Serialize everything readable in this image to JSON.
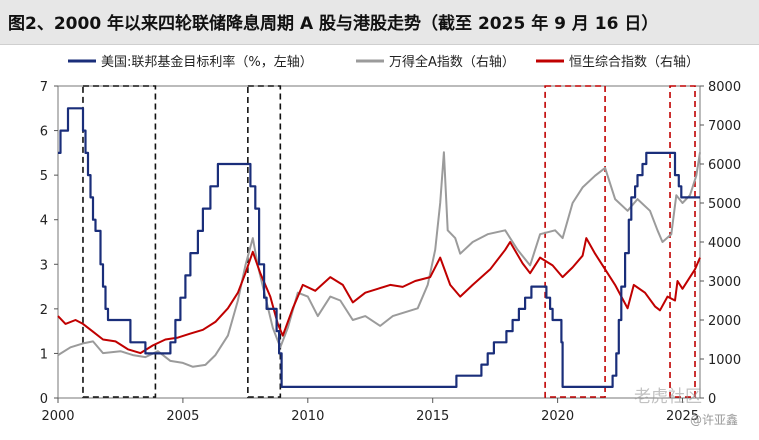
{
  "chart_data": {
    "type": "line",
    "title": "图2、2000 年以来四轮联储降息周期 A 股与港股走势（截至 2025 年 9 月 16 日）",
    "x_ticks": [
      "2000",
      "2005",
      "2010",
      "2015",
      "2020",
      "2025"
    ],
    "xlim": [
      2000,
      2025.7
    ],
    "y_left": {
      "ylim": [
        0,
        7
      ],
      "ticks": [
        "0",
        "1",
        "2",
        "3",
        "4",
        "5",
        "6",
        "7"
      ]
    },
    "y_right": {
      "ylim": [
        0,
        8000
      ],
      "ticks": [
        "0",
        "1000",
        "2000",
        "3000",
        "4000",
        "5000",
        "6000",
        "7000",
        "8000"
      ]
    },
    "series": [
      {
        "name": "美国:联邦基金目标利率（%，左轴）",
        "axis": "left",
        "color": "#1a2e7a",
        "step": true,
        "points": [
          [
            2000.0,
            5.5
          ],
          [
            2000.1,
            6.0
          ],
          [
            2000.4,
            6.5
          ],
          [
            2001.0,
            6.0
          ],
          [
            2001.1,
            5.5
          ],
          [
            2001.2,
            5.0
          ],
          [
            2001.3,
            4.5
          ],
          [
            2001.4,
            4.0
          ],
          [
            2001.5,
            3.75
          ],
          [
            2001.7,
            3.0
          ],
          [
            2001.8,
            2.5
          ],
          [
            2001.9,
            2.0
          ],
          [
            2002.0,
            1.75
          ],
          [
            2002.9,
            1.25
          ],
          [
            2003.5,
            1.0
          ],
          [
            2004.5,
            1.25
          ],
          [
            2004.7,
            1.75
          ],
          [
            2004.9,
            2.25
          ],
          [
            2005.1,
            2.75
          ],
          [
            2005.3,
            3.25
          ],
          [
            2005.6,
            3.75
          ],
          [
            2005.8,
            4.25
          ],
          [
            2006.1,
            4.75
          ],
          [
            2006.4,
            5.25
          ],
          [
            2007.7,
            4.75
          ],
          [
            2007.9,
            4.25
          ],
          [
            2008.05,
            3.0
          ],
          [
            2008.25,
            2.25
          ],
          [
            2008.35,
            2.0
          ],
          [
            2008.75,
            1.5
          ],
          [
            2008.85,
            1.0
          ],
          [
            2008.95,
            0.25
          ],
          [
            2015.95,
            0.5
          ],
          [
            2016.95,
            0.75
          ],
          [
            2017.2,
            1.0
          ],
          [
            2017.45,
            1.25
          ],
          [
            2017.95,
            1.5
          ],
          [
            2018.2,
            1.75
          ],
          [
            2018.45,
            2.0
          ],
          [
            2018.7,
            2.25
          ],
          [
            2018.95,
            2.5
          ],
          [
            2019.55,
            2.25
          ],
          [
            2019.7,
            2.0
          ],
          [
            2019.8,
            1.75
          ],
          [
            2020.15,
            1.25
          ],
          [
            2020.2,
            0.25
          ],
          [
            2022.2,
            0.5
          ],
          [
            2022.35,
            1.0
          ],
          [
            2022.45,
            1.75
          ],
          [
            2022.55,
            2.5
          ],
          [
            2022.7,
            3.25
          ],
          [
            2022.85,
            4.0
          ],
          [
            2022.95,
            4.5
          ],
          [
            2023.1,
            4.75
          ],
          [
            2023.2,
            5.0
          ],
          [
            2023.4,
            5.25
          ],
          [
            2023.55,
            5.5
          ],
          [
            2024.7,
            5.0
          ],
          [
            2024.85,
            4.75
          ],
          [
            2024.95,
            4.5
          ],
          [
            2025.7,
            4.5
          ]
        ]
      },
      {
        "name": "万得全A指数（右轴）",
        "axis": "right",
        "color": "#9b9b9b",
        "points": [
          [
            2000.0,
            1100
          ],
          [
            2000.5,
            1300
          ],
          [
            2001.0,
            1400
          ],
          [
            2001.4,
            1450
          ],
          [
            2001.8,
            1150
          ],
          [
            2002.5,
            1200
          ],
          [
            2003.0,
            1100
          ],
          [
            2003.5,
            1050
          ],
          [
            2004.0,
            1200
          ],
          [
            2004.5,
            950
          ],
          [
            2005.0,
            900
          ],
          [
            2005.4,
            800
          ],
          [
            2005.9,
            850
          ],
          [
            2006.3,
            1100
          ],
          [
            2006.8,
            1600
          ],
          [
            2007.2,
            2500
          ],
          [
            2007.5,
            3400
          ],
          [
            2007.8,
            4100
          ],
          [
            2008.0,
            3400
          ],
          [
            2008.3,
            2600
          ],
          [
            2008.6,
            1800
          ],
          [
            2008.9,
            1300
          ],
          [
            2009.2,
            1800
          ],
          [
            2009.6,
            2700
          ],
          [
            2010.0,
            2600
          ],
          [
            2010.4,
            2100
          ],
          [
            2010.9,
            2600
          ],
          [
            2011.3,
            2500
          ],
          [
            2011.8,
            2000
          ],
          [
            2012.3,
            2100
          ],
          [
            2012.9,
            1850
          ],
          [
            2013.4,
            2100
          ],
          [
            2013.9,
            2200
          ],
          [
            2014.4,
            2300
          ],
          [
            2014.8,
            2900
          ],
          [
            2015.1,
            3800
          ],
          [
            2015.3,
            5000
          ],
          [
            2015.45,
            6300
          ],
          [
            2015.6,
            4300
          ],
          [
            2015.9,
            4100
          ],
          [
            2016.1,
            3700
          ],
          [
            2016.6,
            4000
          ],
          [
            2017.2,
            4200
          ],
          [
            2017.9,
            4300
          ],
          [
            2018.4,
            3800
          ],
          [
            2018.9,
            3400
          ],
          [
            2019.3,
            4200
          ],
          [
            2019.9,
            4300
          ],
          [
            2020.2,
            4100
          ],
          [
            2020.6,
            5000
          ],
          [
            2021.0,
            5400
          ],
          [
            2021.5,
            5700
          ],
          [
            2021.9,
            5900
          ],
          [
            2022.3,
            5100
          ],
          [
            2022.8,
            4800
          ],
          [
            2023.2,
            5100
          ],
          [
            2023.7,
            4800
          ],
          [
            2024.0,
            4300
          ],
          [
            2024.2,
            4000
          ],
          [
            2024.55,
            4200
          ],
          [
            2024.75,
            5200
          ],
          [
            2025.0,
            5000
          ],
          [
            2025.3,
            5200
          ],
          [
            2025.55,
            5700
          ],
          [
            2025.7,
            6300
          ]
        ]
      },
      {
        "name": "恒生综合指数（右轴）",
        "axis": "right",
        "color": "#c00000",
        "points": [
          [
            2000.0,
            2100
          ],
          [
            2000.3,
            1900
          ],
          [
            2000.7,
            2000
          ],
          [
            2001.0,
            1900
          ],
          [
            2001.4,
            1700
          ],
          [
            2001.8,
            1500
          ],
          [
            2002.3,
            1450
          ],
          [
            2002.8,
            1250
          ],
          [
            2003.3,
            1150
          ],
          [
            2003.8,
            1350
          ],
          [
            2004.3,
            1500
          ],
          [
            2004.8,
            1550
          ],
          [
            2005.3,
            1650
          ],
          [
            2005.8,
            1750
          ],
          [
            2006.3,
            1950
          ],
          [
            2006.8,
            2300
          ],
          [
            2007.2,
            2700
          ],
          [
            2007.5,
            3200
          ],
          [
            2007.8,
            3750
          ],
          [
            2008.1,
            3200
          ],
          [
            2008.5,
            2600
          ],
          [
            2008.8,
            1900
          ],
          [
            2009.0,
            1600
          ],
          [
            2009.4,
            2300
          ],
          [
            2009.8,
            2900
          ],
          [
            2010.3,
            2750
          ],
          [
            2010.9,
            3100
          ],
          [
            2011.4,
            2900
          ],
          [
            2011.8,
            2450
          ],
          [
            2012.3,
            2700
          ],
          [
            2012.8,
            2800
          ],
          [
            2013.3,
            2900
          ],
          [
            2013.8,
            2850
          ],
          [
            2014.3,
            3000
          ],
          [
            2014.9,
            3100
          ],
          [
            2015.3,
            3600
          ],
          [
            2015.7,
            2900
          ],
          [
            2016.1,
            2600
          ],
          [
            2016.6,
            2900
          ],
          [
            2017.3,
            3300
          ],
          [
            2017.9,
            3800
          ],
          [
            2018.1,
            4000
          ],
          [
            2018.6,
            3450
          ],
          [
            2018.9,
            3200
          ],
          [
            2019.3,
            3600
          ],
          [
            2019.8,
            3400
          ],
          [
            2020.2,
            3100
          ],
          [
            2020.6,
            3350
          ],
          [
            2021.0,
            3650
          ],
          [
            2021.15,
            4100
          ],
          [
            2021.5,
            3700
          ],
          [
            2021.9,
            3300
          ],
          [
            2022.3,
            2900
          ],
          [
            2022.8,
            2300
          ],
          [
            2023.05,
            2900
          ],
          [
            2023.5,
            2700
          ],
          [
            2023.9,
            2350
          ],
          [
            2024.1,
            2250
          ],
          [
            2024.4,
            2600
          ],
          [
            2024.7,
            2500
          ],
          [
            2024.8,
            3000
          ],
          [
            2025.0,
            2800
          ],
          [
            2025.3,
            3100
          ],
          [
            2025.5,
            3300
          ],
          [
            2025.7,
            3600
          ]
        ]
      }
    ],
    "highlight_boxes": [
      {
        "x0": 2001.0,
        "x1": 2003.9,
        "color": "#111111"
      },
      {
        "x0": 2007.6,
        "x1": 2008.9,
        "color": "#111111"
      },
      {
        "x0": 2019.5,
        "x1": 2021.9,
        "color": "#c00000"
      },
      {
        "x0": 2024.5,
        "x1": 2025.5,
        "color": "#c00000"
      }
    ],
    "legend_position": "top"
  },
  "watermark": "老虎社区",
  "watermark_author": "@许亚鑫"
}
